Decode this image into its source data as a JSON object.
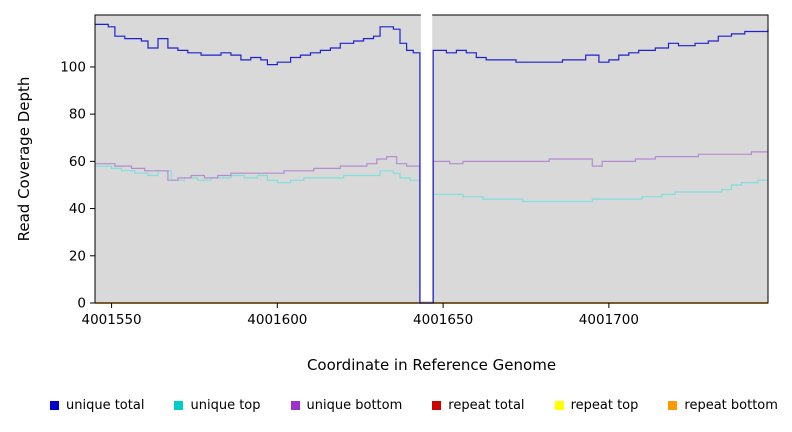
{
  "chart_data": {
    "type": "line",
    "line_style": "step",
    "title": "",
    "xlabel": "Coordinate in Reference Genome",
    "ylabel": "Read Coverage Depth",
    "plot_bg": "#d9d9d9",
    "x_axis": {
      "min": 4001545,
      "max": 4001748,
      "ticks": [
        4001550,
        4001600,
        4001650,
        4001700
      ]
    },
    "y_axis": {
      "min": 0,
      "max": 122,
      "ticks": [
        0,
        20,
        40,
        60,
        80,
        100
      ]
    },
    "gap": {
      "x_start": 4001643,
      "x_end": 4001647,
      "note": "white no-data band, coverage drops to 0"
    },
    "series": [
      {
        "name": "repeat total",
        "key": "repeat-total",
        "color": "#CC0000",
        "points": [
          [
            4001545,
            0
          ],
          [
            4001748,
            0
          ]
        ]
      },
      {
        "name": "repeat top",
        "key": "repeat-top",
        "color": "#FFFF00",
        "points": [
          [
            4001545,
            0
          ],
          [
            4001748,
            0
          ]
        ]
      },
      {
        "name": "repeat bottom",
        "key": "repeat-bottom",
        "color": "#FF9900",
        "points": [
          [
            4001545,
            0
          ],
          [
            4001748,
            0
          ]
        ]
      },
      {
        "name": "unique top",
        "key": "unique-top",
        "color": "#7FE0DC",
        "points": [
          [
            4001545,
            58
          ],
          [
            4001550,
            57
          ],
          [
            4001553,
            56
          ],
          [
            4001557,
            55
          ],
          [
            4001561,
            54
          ],
          [
            4001564,
            56
          ],
          [
            4001568,
            52
          ],
          [
            4001572,
            53
          ],
          [
            4001576,
            52
          ],
          [
            4001580,
            53
          ],
          [
            4001586,
            54
          ],
          [
            4001590,
            53
          ],
          [
            4001594,
            54
          ],
          [
            4001597,
            52
          ],
          [
            4001600,
            51
          ],
          [
            4001604,
            52
          ],
          [
            4001608,
            53
          ],
          [
            4001616,
            53
          ],
          [
            4001620,
            54
          ],
          [
            4001628,
            54
          ],
          [
            4001631,
            56
          ],
          [
            4001635,
            55
          ],
          [
            4001637,
            53
          ],
          [
            4001640,
            52
          ],
          [
            4001643,
            0
          ],
          [
            4001647,
            46
          ],
          [
            4001653,
            46
          ],
          [
            4001656,
            45
          ],
          [
            4001662,
            44
          ],
          [
            4001668,
            44
          ],
          [
            4001674,
            43
          ],
          [
            4001690,
            43
          ],
          [
            4001695,
            44
          ],
          [
            4001706,
            44
          ],
          [
            4001710,
            45
          ],
          [
            4001716,
            46
          ],
          [
            4001720,
            47
          ],
          [
            4001730,
            47
          ],
          [
            4001734,
            48
          ],
          [
            4001737,
            50
          ],
          [
            4001740,
            51
          ],
          [
            4001745,
            52
          ],
          [
            4001748,
            52
          ]
        ]
      },
      {
        "name": "unique bottom",
        "key": "unique-bottom",
        "color": "#B48CD2",
        "points": [
          [
            4001545,
            59
          ],
          [
            4001551,
            58
          ],
          [
            4001556,
            57
          ],
          [
            4001560,
            56
          ],
          [
            4001567,
            52
          ],
          [
            4001570,
            53
          ],
          [
            4001574,
            54
          ],
          [
            4001578,
            53
          ],
          [
            4001582,
            54
          ],
          [
            4001586,
            55
          ],
          [
            4001598,
            55
          ],
          [
            4001602,
            56
          ],
          [
            4001611,
            57
          ],
          [
            4001619,
            58
          ],
          [
            4001627,
            59
          ],
          [
            4001630,
            61
          ],
          [
            4001633,
            62
          ],
          [
            4001636,
            59
          ],
          [
            4001639,
            58
          ],
          [
            4001643,
            0
          ],
          [
            4001647,
            60
          ],
          [
            4001652,
            59
          ],
          [
            4001656,
            60
          ],
          [
            4001682,
            61
          ],
          [
            4001695,
            58
          ],
          [
            4001698,
            60
          ],
          [
            4001708,
            61
          ],
          [
            4001714,
            62
          ],
          [
            4001727,
            63
          ],
          [
            4001743,
            64
          ],
          [
            4001748,
            64
          ]
        ]
      },
      {
        "name": "unique total",
        "key": "unique-total",
        "color": "#2121CC",
        "points": [
          [
            4001545,
            118
          ],
          [
            4001549,
            117
          ],
          [
            4001551,
            113
          ],
          [
            4001554,
            112
          ],
          [
            4001559,
            111
          ],
          [
            4001561,
            108
          ],
          [
            4001564,
            112
          ],
          [
            4001567,
            108
          ],
          [
            4001570,
            107
          ],
          [
            4001573,
            106
          ],
          [
            4001577,
            105
          ],
          [
            4001583,
            106
          ],
          [
            4001586,
            105
          ],
          [
            4001589,
            103
          ],
          [
            4001592,
            104
          ],
          [
            4001595,
            103
          ],
          [
            4001597,
            101
          ],
          [
            4001600,
            102
          ],
          [
            4001604,
            104
          ],
          [
            4001607,
            105
          ],
          [
            4001610,
            106
          ],
          [
            4001613,
            107
          ],
          [
            4001616,
            108
          ],
          [
            4001619,
            110
          ],
          [
            4001623,
            111
          ],
          [
            4001626,
            112
          ],
          [
            4001629,
            113
          ],
          [
            4001631,
            117
          ],
          [
            4001635,
            116
          ],
          [
            4001637,
            110
          ],
          [
            4001639,
            107
          ],
          [
            4001641,
            106
          ],
          [
            4001643,
            0
          ],
          [
            4001647,
            107
          ],
          [
            4001651,
            106
          ],
          [
            4001654,
            107
          ],
          [
            4001657,
            106
          ],
          [
            4001660,
            104
          ],
          [
            4001663,
            103
          ],
          [
            4001668,
            103
          ],
          [
            4001672,
            102
          ],
          [
            4001686,
            103
          ],
          [
            4001693,
            105
          ],
          [
            4001697,
            102
          ],
          [
            4001700,
            103
          ],
          [
            4001703,
            105
          ],
          [
            4001706,
            106
          ],
          [
            4001709,
            107
          ],
          [
            4001714,
            108
          ],
          [
            4001718,
            110
          ],
          [
            4001721,
            109
          ],
          [
            4001726,
            110
          ],
          [
            4001730,
            111
          ],
          [
            4001733,
            113
          ],
          [
            4001737,
            114
          ],
          [
            4001741,
            115
          ],
          [
            4001748,
            116
          ]
        ]
      }
    ],
    "legend": [
      {
        "label": "unique total",
        "color": "#0000CC"
      },
      {
        "label": "unique top",
        "color": "#00CCCC"
      },
      {
        "label": "unique bottom",
        "color": "#9933CC"
      },
      {
        "label": "repeat total",
        "color": "#CC0000"
      },
      {
        "label": "repeat top",
        "color": "#FFFF00"
      },
      {
        "label": "repeat bottom",
        "color": "#FF9900"
      }
    ],
    "legend_position": "bottom"
  }
}
